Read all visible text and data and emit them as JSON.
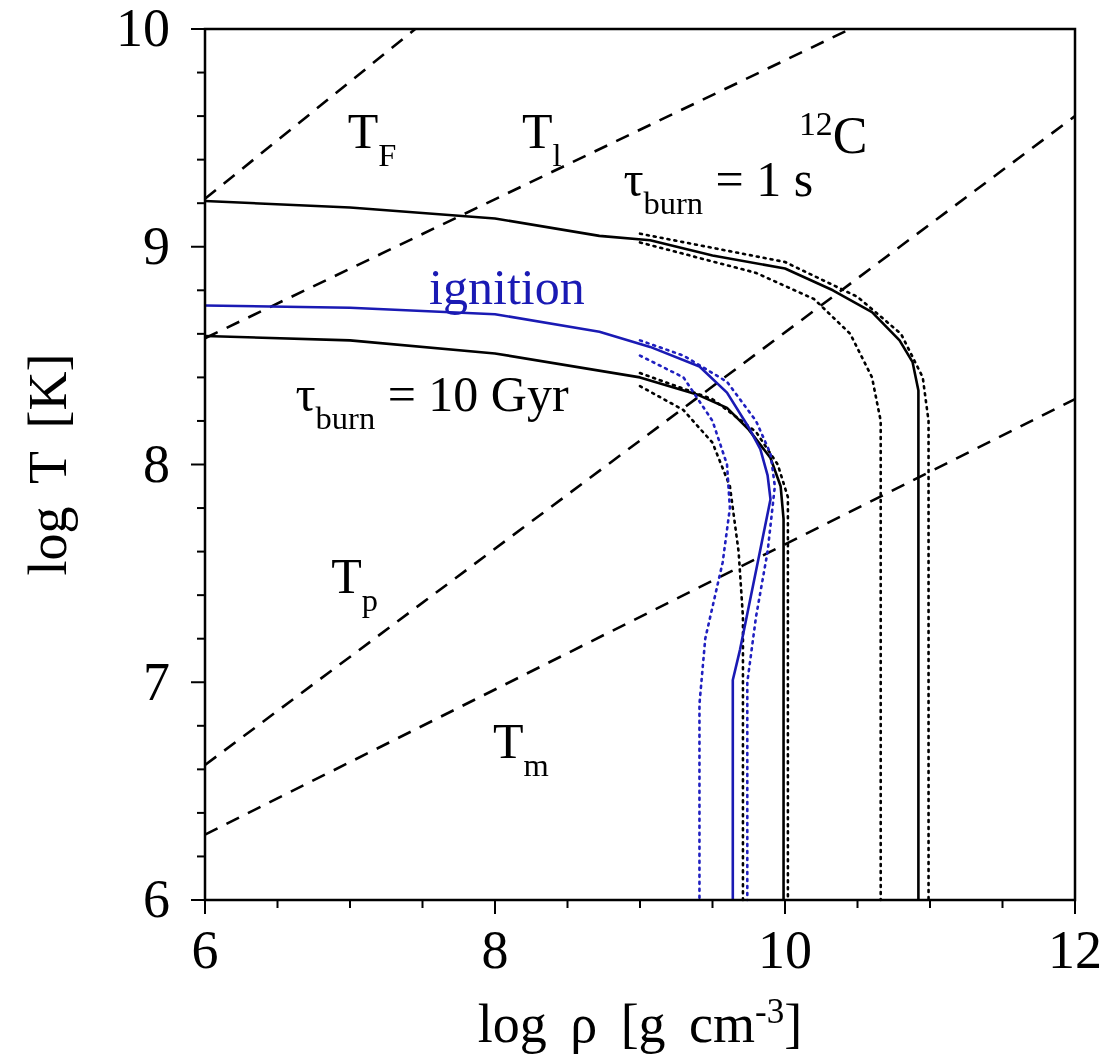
{
  "chart_data": {
    "type": "line",
    "xlabel": "log ρ [g cm$^{-3}$]",
    "ylabel": "log T [K]",
    "xlim": [
      6,
      12
    ],
    "ylim": [
      6,
      10
    ],
    "xticks": [
      6,
      {
        "value": 6.5,
        "label": null
      },
      {
        "value": 7,
        "label": null
      },
      {
        "value": 7.5,
        "label": null
      },
      8,
      {
        "value": 8.5,
        "label": null
      },
      {
        "value": 9,
        "label": null
      },
      {
        "value": 9.5,
        "label": null
      },
      10,
      {
        "value": 10.5,
        "label": null
      },
      {
        "value": 11,
        "label": null
      },
      {
        "value": 11.5,
        "label": null
      },
      12
    ],
    "yticks": [
      6,
      {
        "value": 6.2,
        "label": null
      },
      {
        "value": 6.4,
        "label": null
      },
      {
        "value": 6.6,
        "label": null
      },
      {
        "value": 6.8,
        "label": null
      },
      7,
      {
        "value": 7.2,
        "label": null
      },
      {
        "value": 7.4,
        "label": null
      },
      {
        "value": 7.6,
        "label": null
      },
      {
        "value": 7.8,
        "label": null
      },
      8,
      {
        "value": 8.2,
        "label": null
      },
      {
        "value": 8.4,
        "label": null
      },
      {
        "value": 8.6,
        "label": null
      },
      {
        "value": 8.8,
        "label": null
      },
      9,
      {
        "value": 9.2,
        "label": null
      },
      {
        "value": 9.4,
        "label": null
      },
      {
        "value": 9.6,
        "label": null
      },
      {
        "value": 9.8,
        "label": null
      },
      10
    ],
    "series": [
      {
        "name": "T$_{F}$",
        "color": "#000000",
        "line_style": "dashed",
        "x": [
          6,
          7.45
        ],
        "values": [
          9.22,
          10
        ]
      },
      {
        "name": "T$_{l}$",
        "color": "#000000",
        "line_style": "dashed",
        "x": [
          6,
          10.45
        ],
        "values": [
          8.58,
          10
        ]
      },
      {
        "name": "T$_{p}$",
        "color": "#000000",
        "line_style": "dashed",
        "x": [
          6,
          12
        ],
        "values": [
          6.62,
          9.6
        ]
      },
      {
        "name": "T$_{m}$",
        "color": "#000000",
        "line_style": "dashed",
        "x": [
          6,
          12
        ],
        "values": [
          6.3,
          8.3
        ]
      },
      {
        "color": "#000000",
        "line_style": "dotted",
        "x": [
          9,
          10,
          10.5,
          10.8,
          10.95,
          10.99,
          10.99
        ],
        "values": [
          9.06,
          8.93,
          8.77,
          8.6,
          8.4,
          8.2,
          6
        ]
      },
      {
        "color": "#000000",
        "line_style": "dotted",
        "x": [
          9,
          9.8,
          10.2,
          10.45,
          10.6,
          10.66,
          10.66
        ],
        "values": [
          9.02,
          8.88,
          8.76,
          8.6,
          8.4,
          8.2,
          6
        ]
      },
      {
        "name": "τ$_{burn}$ = 1 s",
        "color": "#000000",
        "line_style": "solid",
        "x": [
          6,
          7,
          8,
          8.72,
          9.07,
          9.5,
          10,
          10.33,
          10.6,
          10.79,
          10.88,
          10.92,
          10.92
        ],
        "values": [
          9.21,
          9.18,
          9.13,
          9.05,
          9.03,
          8.96,
          8.9,
          8.8,
          8.7,
          8.57,
          8.47,
          8.34,
          6
        ]
      },
      {
        "color": "#000000",
        "line_style": "dotted",
        "x": [
          9,
          9.3,
          9.5,
          9.62,
          9.68,
          9.71,
          9.71
        ],
        "values": [
          8.36,
          8.25,
          8.1,
          7.9,
          7.6,
          7.3,
          6
        ]
      },
      {
        "color": "#000000",
        "line_style": "dotted",
        "x": [
          9,
          9.5,
          9.8,
          9.95,
          10.02,
          10.02
        ],
        "values": [
          8.42,
          8.3,
          8.15,
          8,
          7.85,
          6
        ]
      },
      {
        "name": "τ$_{burn}$ = 10 Gyr",
        "color": "#000000",
        "line_style": "solid",
        "x": [
          6,
          7,
          8,
          9,
          9.4,
          9.6,
          9.75,
          9.9,
          9.97,
          9.99,
          9.99
        ],
        "values": [
          8.59,
          8.57,
          8.51,
          8.4,
          8.32,
          8.26,
          8.16,
          8.03,
          7.9,
          7.75,
          6
        ]
      },
      {
        "color": "#2020c0",
        "line_style": "dotted",
        "x": [
          9,
          9.3,
          9.5,
          9.6,
          9.62,
          9.57,
          9.45,
          9.41,
          9.41
        ],
        "values": [
          8.5,
          8.4,
          8.2,
          8,
          7.8,
          7.55,
          7.2,
          6.9,
          6
        ]
      },
      {
        "color": "#2020c0",
        "line_style": "dotted",
        "x": [
          9,
          9.3,
          9.6,
          9.8,
          9.9,
          9.93,
          9.88,
          9.8,
          9.74,
          9.74
        ],
        "values": [
          8.57,
          8.5,
          8.38,
          8.2,
          8.05,
          7.9,
          7.6,
          7.3,
          7,
          6
        ]
      },
      {
        "name": "ignition",
        "color": "#1a1ab4",
        "line_style": "solid",
        "x": [
          6,
          7,
          8,
          8.72,
          9.07,
          9.41,
          9.6,
          9.75,
          9.83,
          9.88,
          9.9,
          9.83,
          9.69,
          9.64,
          9.64
        ],
        "values": [
          8.73,
          8.72,
          8.69,
          8.61,
          8.54,
          8.45,
          8.33,
          8.17,
          8.07,
          7.95,
          7.84,
          7.61,
          7.15,
          7.01,
          6
        ]
      }
    ],
    "annotations": [
      "$^{12}$C"
    ]
  }
}
